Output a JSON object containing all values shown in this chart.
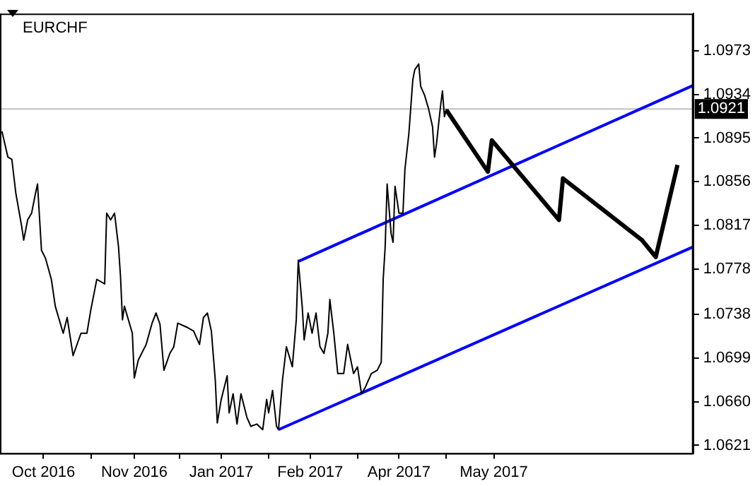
{
  "chart_data": {
    "type": "line",
    "title": "EURCHF",
    "series": [
      {
        "color": "#000000",
        "x": [
          "2016-09-18",
          "2016-09-21",
          "2016-09-23",
          "2016-09-25",
          "2016-09-28",
          "2016-09-29",
          "2016-10-01",
          "2016-10-03",
          "2016-10-05",
          "2016-10-06",
          "2016-10-08",
          "2016-10-10",
          "2016-10-13",
          "2016-10-15",
          "2016-10-19",
          "2016-10-21",
          "2016-10-24",
          "2016-10-28",
          "2016-10-31",
          "2016-11-02",
          "2016-11-05",
          "2016-11-09",
          "2016-11-10",
          "2016-11-12",
          "2016-11-14",
          "2016-11-16",
          "2016-11-17",
          "2016-11-18",
          "2016-11-19",
          "2016-11-23",
          "2016-11-24",
          "2016-11-26",
          "2016-11-30",
          "2016-12-03",
          "2016-12-05",
          "2016-12-07",
          "2016-12-09",
          "2016-12-12",
          "2016-12-14",
          "2016-12-16",
          "2016-12-21",
          "2016-12-24",
          "2016-12-27",
          "2016-12-29",
          "2016-12-31",
          "2017-01-02",
          "2017-01-04",
          "2017-01-05",
          "2017-01-07",
          "2017-01-10",
          "2017-01-11",
          "2017-01-13",
          "2017-01-15",
          "2017-01-17",
          "2017-01-20",
          "2017-01-22",
          "2017-01-25",
          "2017-01-28",
          "2017-01-30",
          "2017-01-31",
          "2017-02-02",
          "2017-02-04",
          "2017-02-05",
          "2017-02-07",
          "2017-02-09",
          "2017-02-12",
          "2017-02-14",
          "2017-02-15",
          "2017-02-17",
          "2017-02-18",
          "2017-02-20",
          "2017-02-22",
          "2017-02-24",
          "2017-02-26",
          "2017-02-28",
          "2017-03-02",
          "2017-03-03",
          "2017-03-05",
          "2017-03-07",
          "2017-03-10",
          "2017-03-12",
          "2017-03-15",
          "2017-03-17",
          "2017-03-19",
          "2017-03-21",
          "2017-03-24",
          "2017-03-27",
          "2017-03-29",
          "2017-03-30",
          "2017-03-31",
          "2017-04-01",
          "2017-04-03",
          "2017-04-04",
          "2017-04-05",
          "2017-04-07",
          "2017-04-09",
          "2017-04-10",
          "2017-04-12",
          "2017-04-14",
          "2017-04-15",
          "2017-04-17",
          "2017-04-18",
          "2017-04-20",
          "2017-04-22",
          "2017-04-24",
          "2017-04-25",
          "2017-04-26",
          "2017-04-28",
          "2017-04-29",
          "2017-04-30",
          "2017-05-01"
        ],
        "values": [
          1.0901,
          1.0878,
          1.0876,
          1.0846,
          1.0816,
          1.0804,
          1.0822,
          1.0828,
          1.0846,
          1.0854,
          1.0795,
          1.0788,
          1.0769,
          1.0745,
          1.0721,
          1.0735,
          1.0701,
          1.0721,
          1.0721,
          1.0742,
          1.0769,
          1.0765,
          1.0828,
          1.0822,
          1.0828,
          1.0798,
          1.0772,
          1.0733,
          1.0745,
          1.0721,
          1.0681,
          1.0697,
          1.0711,
          1.073,
          1.0739,
          1.0729,
          1.0688,
          1.0703,
          1.0709,
          1.073,
          1.0726,
          1.0723,
          1.0711,
          1.0735,
          1.0739,
          1.0723,
          1.0679,
          1.0641,
          1.0662,
          1.0683,
          1.065,
          1.0667,
          1.064,
          1.0667,
          1.0646,
          1.0638,
          1.064,
          1.0635,
          1.0662,
          1.065,
          1.067,
          1.0638,
          1.0635,
          1.0679,
          1.0709,
          1.0691,
          1.0733,
          1.0786,
          1.0745,
          1.0715,
          1.0739,
          1.0721,
          1.0739,
          1.0709,
          1.0703,
          1.0721,
          1.0751,
          1.0721,
          1.0685,
          1.0685,
          1.0711,
          1.0685,
          1.0691,
          1.0667,
          1.0673,
          1.0685,
          1.0688,
          1.0695,
          1.0769,
          1.0798,
          1.0854,
          1.081,
          1.0802,
          1.0852,
          1.0828,
          1.0828,
          1.0867,
          1.0899,
          1.0947,
          1.0956,
          1.0961,
          1.0941,
          1.0933,
          1.0921,
          1.0905,
          1.0878,
          1.089,
          1.0923,
          1.0937,
          1.0914,
          1.0921
        ]
      },
      {
        "color": "#000000",
        "x": [
          "2017-05-01",
          "2017-05-22",
          "2017-05-24",
          "2017-06-27",
          "2017-06-29",
          "2017-08-08",
          "2017-08-15",
          "2017-08-26"
        ],
        "values": [
          1.092,
          1.0865,
          1.0893,
          1.0822,
          1.0859,
          1.0804,
          1.0789,
          1.0871
        ]
      },
      {
        "color": "#0000ff",
        "x": [
          "2017-02-15",
          "2017-09-03"
        ],
        "values": [
          1.0785,
          1.0942
        ]
      },
      {
        "color": "#0000ff",
        "x": [
          "2017-02-05",
          "2017-09-03"
        ],
        "values": [
          1.0635,
          1.0798
        ]
      }
    ],
    "xlim": [
      "2016-09-17",
      "2017-09-03"
    ],
    "xticks": [
      {
        "value": "2016-10-09",
        "label": "Oct 2016"
      },
      {
        "value": "2016-11-02",
        "label": null
      },
      {
        "value": "2016-11-24",
        "label": "Nov 2016"
      },
      {
        "value": "2016-12-17",
        "label": null
      },
      {
        "value": "2017-01-07",
        "label": "Jan 2017"
      },
      {
        "value": "2017-01-31",
        "label": null
      },
      {
        "value": "2017-02-21",
        "label": "Feb 2017"
      },
      {
        "value": "2017-03-17",
        "label": null
      },
      {
        "value": "2017-04-07",
        "label": "Apr 2017"
      },
      {
        "value": "2017-05-01",
        "label": null
      },
      {
        "value": "2017-05-25",
        "label": "May 2017"
      }
    ],
    "ylim": [
      1.0614,
      1.1006
    ],
    "yticks": [
      1.0621,
      {
        "value": 1.066,
        "label": "1.0660"
      },
      1.0699,
      1.0738,
      1.0778,
      1.0817,
      1.0856,
      1.0895,
      1.0934,
      1.0973
    ],
    "ref_lines": [
      {
        "axis": "y",
        "value": 1.0921,
        "label": "1.0921",
        "color": "#c0c0c0"
      }
    ],
    "grid": false,
    "legend": false,
    "marker": "none",
    "line_style": "solid"
  }
}
